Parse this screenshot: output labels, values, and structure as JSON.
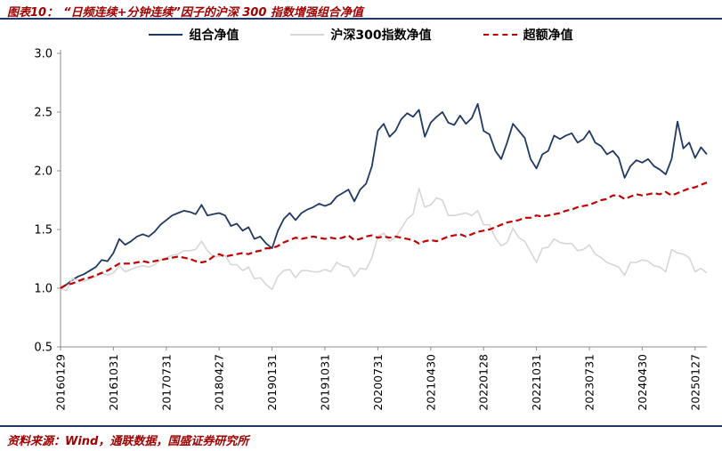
{
  "header": {
    "prefix": "图表10：",
    "title": "“日频连续+分钟连续”因子的沪深 300 指数增强组合净值"
  },
  "footer": {
    "source": "资料来源：Wind，通联数据，国盛证券研究所"
  },
  "colors": {
    "accent_rule": "#1F3864",
    "title_text": "#A00000",
    "axis": "#8C8C8C",
    "tick_label": "#000000"
  },
  "chart_data": {
    "type": "line",
    "title": "“日频连续+分钟连续”因子的沪深 300 指数增强组合净值",
    "grid": false,
    "legend_position": "top",
    "ylim": [
      0.5,
      3.0
    ],
    "yticks": [
      "0.5",
      "1.0",
      "1.5",
      "2.0",
      "2.5",
      "3.0"
    ],
    "x_frequency": "monthly",
    "x_tick_interval": 9,
    "x_tick_labels": [
      "20160129",
      "20161031",
      "20170731",
      "20180427",
      "20190131",
      "20191031",
      "20200731",
      "20210430",
      "20220128",
      "20221031",
      "20230731",
      "20240430",
      "20250127"
    ],
    "series": [
      {
        "name": "组合净值",
        "color": "#203864",
        "style": "solid",
        "width": 1.8,
        "values": [
          1.0,
          1.03,
          1.07,
          1.1,
          1.12,
          1.15,
          1.18,
          1.24,
          1.23,
          1.3,
          1.42,
          1.37,
          1.4,
          1.44,
          1.46,
          1.44,
          1.48,
          1.54,
          1.58,
          1.62,
          1.64,
          1.66,
          1.65,
          1.63,
          1.71,
          1.62,
          1.63,
          1.64,
          1.62,
          1.53,
          1.55,
          1.49,
          1.52,
          1.42,
          1.44,
          1.38,
          1.34,
          1.49,
          1.59,
          1.64,
          1.58,
          1.64,
          1.67,
          1.69,
          1.72,
          1.7,
          1.72,
          1.78,
          1.81,
          1.84,
          1.74,
          1.84,
          1.89,
          2.04,
          2.34,
          2.4,
          2.29,
          2.34,
          2.44,
          2.49,
          2.46,
          2.52,
          2.29,
          2.41,
          2.46,
          2.5,
          2.41,
          2.39,
          2.47,
          2.4,
          2.45,
          2.57,
          2.34,
          2.31,
          2.17,
          2.1,
          2.24,
          2.4,
          2.34,
          2.28,
          2.1,
          2.02,
          2.14,
          2.17,
          2.3,
          2.27,
          2.3,
          2.32,
          2.24,
          2.27,
          2.34,
          2.24,
          2.21,
          2.14,
          2.17,
          2.11,
          1.94,
          2.04,
          2.09,
          2.07,
          2.1,
          2.04,
          2.01,
          1.97,
          2.1,
          2.42,
          2.19,
          2.24,
          2.11,
          2.2,
          2.14
        ]
      },
      {
        "name": "沪深300指数净值",
        "color": "#D6D6D6",
        "style": "solid",
        "width": 1.6,
        "values": [
          1.0,
          0.98,
          1.08,
          1.07,
          1.06,
          1.08,
          1.1,
          1.13,
          1.11,
          1.13,
          1.19,
          1.14,
          1.16,
          1.18,
          1.19,
          1.18,
          1.2,
          1.24,
          1.26,
          1.28,
          1.29,
          1.32,
          1.32,
          1.33,
          1.4,
          1.32,
          1.27,
          1.27,
          1.28,
          1.2,
          1.2,
          1.15,
          1.18,
          1.08,
          1.09,
          1.03,
          0.99,
          1.1,
          1.15,
          1.16,
          1.09,
          1.15,
          1.15,
          1.14,
          1.14,
          1.16,
          1.14,
          1.22,
          1.19,
          1.18,
          1.1,
          1.17,
          1.16,
          1.26,
          1.44,
          1.47,
          1.4,
          1.43,
          1.51,
          1.59,
          1.63,
          1.85,
          1.69,
          1.71,
          1.77,
          1.75,
          1.62,
          1.62,
          1.63,
          1.64,
          1.62,
          1.66,
          1.54,
          1.54,
          1.43,
          1.36,
          1.39,
          1.51,
          1.43,
          1.4,
          1.31,
          1.22,
          1.34,
          1.35,
          1.42,
          1.39,
          1.38,
          1.38,
          1.32,
          1.33,
          1.37,
          1.29,
          1.26,
          1.22,
          1.2,
          1.18,
          1.11,
          1.22,
          1.22,
          1.24,
          1.23,
          1.19,
          1.18,
          1.14,
          1.33,
          1.3,
          1.29,
          1.26,
          1.14,
          1.17,
          1.13
        ]
      },
      {
        "name": "超额净值",
        "color": "#C00000",
        "style": "dashed",
        "width": 2.2,
        "values": [
          1.0,
          1.03,
          1.04,
          1.06,
          1.08,
          1.09,
          1.11,
          1.13,
          1.15,
          1.18,
          1.21,
          1.21,
          1.21,
          1.22,
          1.23,
          1.22,
          1.23,
          1.24,
          1.25,
          1.26,
          1.27,
          1.26,
          1.25,
          1.23,
          1.22,
          1.23,
          1.27,
          1.29,
          1.27,
          1.28,
          1.29,
          1.3,
          1.29,
          1.31,
          1.32,
          1.34,
          1.34,
          1.36,
          1.39,
          1.41,
          1.43,
          1.42,
          1.43,
          1.44,
          1.43,
          1.42,
          1.43,
          1.42,
          1.43,
          1.45,
          1.41,
          1.42,
          1.44,
          1.45,
          1.43,
          1.44,
          1.43,
          1.44,
          1.43,
          1.42,
          1.41,
          1.38,
          1.4,
          1.41,
          1.4,
          1.42,
          1.44,
          1.45,
          1.46,
          1.44,
          1.46,
          1.48,
          1.49,
          1.5,
          1.52,
          1.54,
          1.56,
          1.57,
          1.58,
          1.6,
          1.6,
          1.62,
          1.61,
          1.62,
          1.63,
          1.64,
          1.66,
          1.67,
          1.69,
          1.7,
          1.71,
          1.73,
          1.75,
          1.76,
          1.79,
          1.79,
          1.76,
          1.78,
          1.8,
          1.79,
          1.8,
          1.81,
          1.8,
          1.82,
          1.79,
          1.81,
          1.83,
          1.85,
          1.86,
          1.88,
          1.9
        ]
      }
    ]
  }
}
